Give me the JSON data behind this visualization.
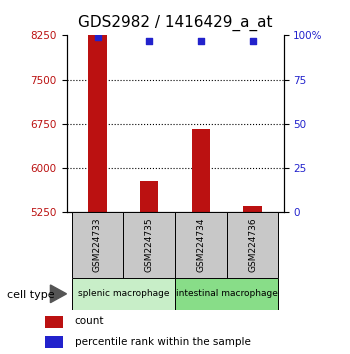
{
  "title": "GDS2982 / 1416429_a_at",
  "samples": [
    "GSM224733",
    "GSM224735",
    "GSM224734",
    "GSM224736"
  ],
  "counts": [
    8680,
    5790,
    6660,
    5360
  ],
  "percentile_ranks": [
    99,
    97,
    97,
    97
  ],
  "ylim_left": [
    5250,
    8250
  ],
  "yticks_left": [
    5250,
    6000,
    6750,
    7500,
    8250
  ],
  "yticks_right": [
    0,
    25,
    50,
    75,
    100
  ],
  "bar_color": "#bb1111",
  "dot_color": "#2222cc",
  "group1_label": "splenic macrophage",
  "group2_label": "intestinal macrophage",
  "group1_color": "#c8eec8",
  "group2_color": "#88dd88",
  "sample_box_color": "#c8c8c8",
  "cell_type_label": "cell type",
  "legend_count_label": "count",
  "legend_pct_label": "percentile rank within the sample",
  "title_fontsize": 11,
  "bar_width": 0.35
}
